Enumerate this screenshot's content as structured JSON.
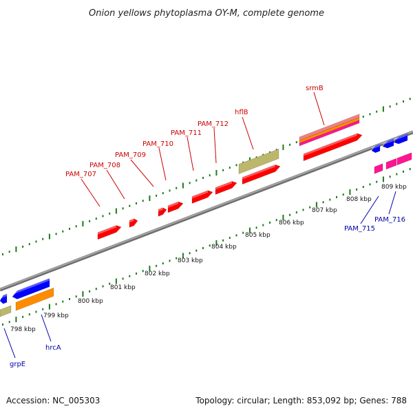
{
  "title": "Onion yellows phytoplasma OY-M, complete genome",
  "footer": {
    "accession": "Accession: NC_005303",
    "stats": "Topology: circular; Length: 853,092 bp; Genes: 788"
  },
  "colors": {
    "background": "#ffffff",
    "backbone": "#8a8a8a",
    "tick": "#1a7a1a",
    "label_top": "#cc0000",
    "label_bottom": "#0000aa",
    "gene_red": "#ff0000",
    "gene_blue": "#0000ff",
    "gene_orange": "#ff8c00",
    "gene_khaki": "#bdb76b",
    "gene_pink": "#ff1493",
    "gene_salmon": "#f08080"
  },
  "axis": {
    "unit": "kbp",
    "ticks": [
      {
        "label": "798 kbp"
      },
      {
        "label": "799 kbp"
      },
      {
        "label": "800 kbp"
      },
      {
        "label": "801 kbp"
      },
      {
        "label": "802 kbp"
      },
      {
        "label": "803 kbp"
      },
      {
        "label": "804 kbp"
      },
      {
        "label": "805 kbp"
      },
      {
        "label": "806 kbp"
      },
      {
        "label": "807 kbp"
      },
      {
        "label": "808 kbp"
      },
      {
        "label": "809 kbp"
      }
    ]
  },
  "gene_labels": {
    "top": [
      "PAM_707",
      "PAM_708",
      "PAM_709",
      "PAM_710",
      "PAM_711",
      "PAM_712",
      "hflB",
      "srmB"
    ],
    "bottom": [
      "grpE",
      "hrcA",
      "PAM_715",
      "PAM_716"
    ]
  }
}
